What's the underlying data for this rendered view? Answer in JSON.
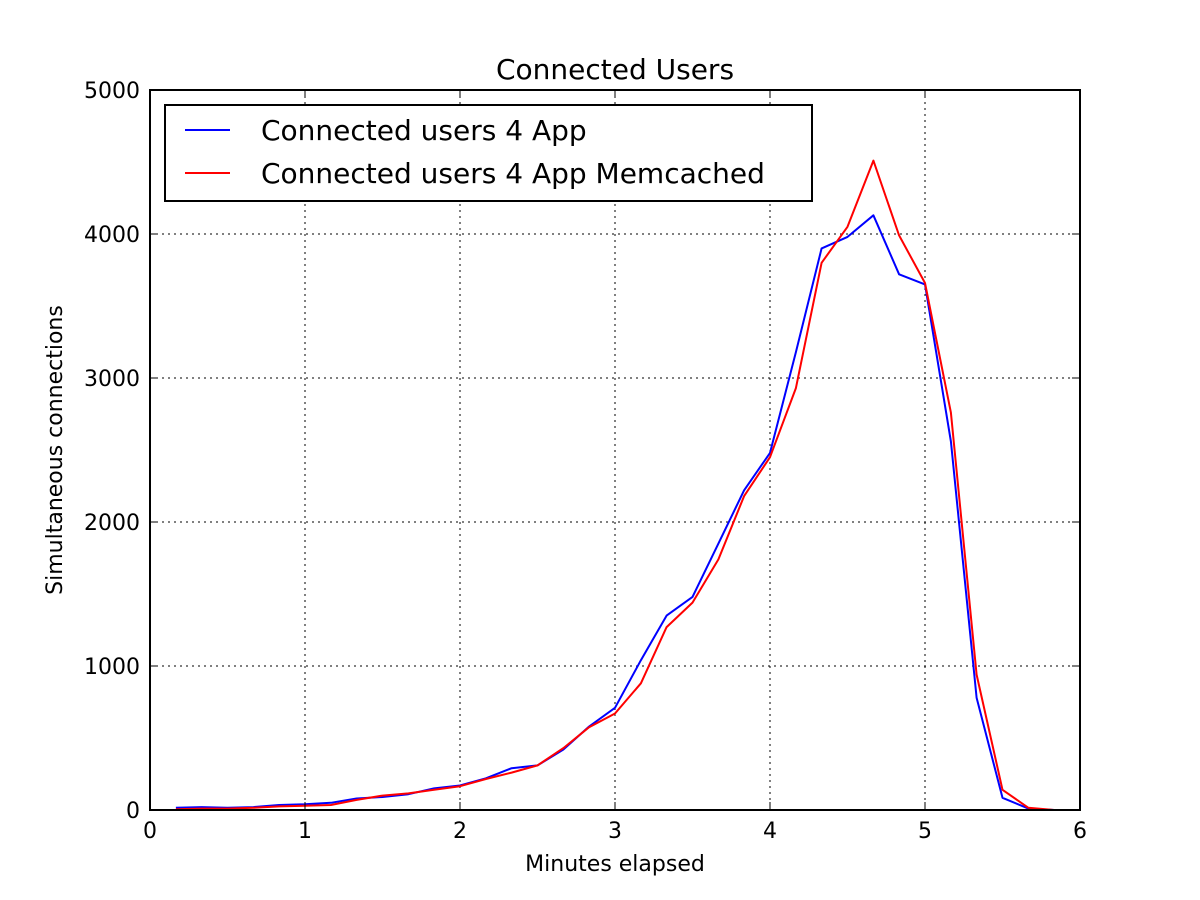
{
  "chart_data": {
    "type": "line",
    "title": "Connected Users",
    "xlabel": "Minutes elapsed",
    "ylabel": "Simultaneous connections",
    "xlim": [
      0,
      6
    ],
    "ylim": [
      0,
      5000
    ],
    "xticks": [
      0,
      1,
      2,
      3,
      4,
      5,
      6
    ],
    "yticks": [
      0,
      1000,
      2000,
      3000,
      4000,
      5000
    ],
    "grid": true,
    "grid_style": "dotted",
    "legend_position": "top-left",
    "series": [
      {
        "name": "Connected users 4 App",
        "color": "#0000ff",
        "x": [
          0.167,
          0.333,
          0.5,
          0.667,
          0.833,
          1.0,
          1.167,
          1.333,
          1.5,
          1.667,
          1.833,
          2.0,
          2.167,
          2.333,
          2.5,
          2.667,
          2.833,
          3.0,
          3.167,
          3.333,
          3.5,
          3.667,
          3.833,
          4.0,
          4.167,
          4.333,
          4.5,
          4.667,
          4.833,
          5.0,
          5.167,
          5.333,
          5.5,
          5.667,
          5.833
        ],
        "y": [
          15,
          20,
          15,
          20,
          35,
          40,
          50,
          80,
          90,
          110,
          150,
          170,
          220,
          290,
          310,
          420,
          580,
          710,
          1040,
          1350,
          1480,
          1850,
          2220,
          2480,
          3180,
          3900,
          3980,
          4130,
          3720,
          3650,
          2560,
          780,
          85,
          10,
          0
        ]
      },
      {
        "name": "Connected users 4 App Memcached",
        "color": "#ff0000",
        "x": [
          0.167,
          0.333,
          0.5,
          0.667,
          0.833,
          1.0,
          1.167,
          1.333,
          1.5,
          1.667,
          1.833,
          2.0,
          2.167,
          2.333,
          2.5,
          2.667,
          2.833,
          3.0,
          3.167,
          3.333,
          3.5,
          3.667,
          3.833,
          4.0,
          4.167,
          4.333,
          4.5,
          4.667,
          4.833,
          5.0,
          5.167,
          5.333,
          5.5,
          5.667,
          5.833
        ],
        "y": [
          5,
          10,
          10,
          15,
          25,
          30,
          35,
          70,
          100,
          115,
          140,
          165,
          215,
          260,
          310,
          430,
          575,
          670,
          880,
          1270,
          1440,
          1740,
          2180,
          2450,
          2930,
          3800,
          4050,
          4510,
          3990,
          3660,
          2760,
          940,
          140,
          15,
          0
        ]
      }
    ]
  }
}
